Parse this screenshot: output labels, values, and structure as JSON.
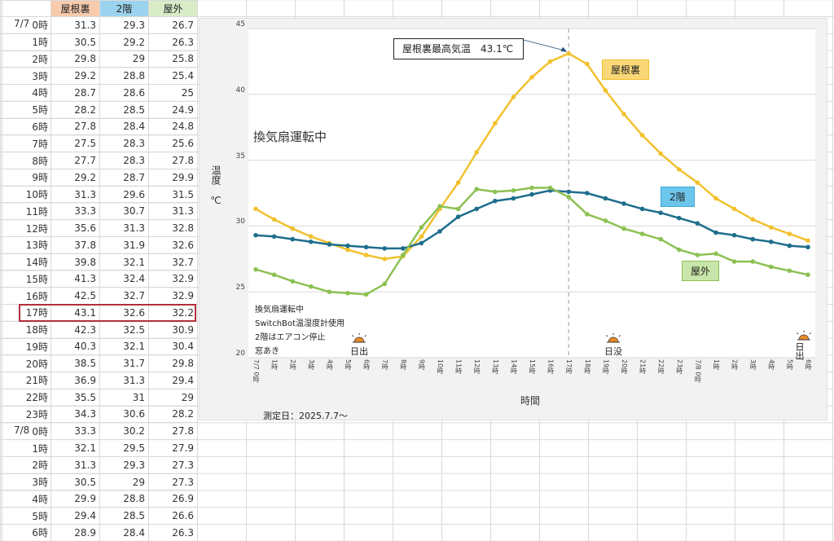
{
  "sheet": {
    "headers": [
      "",
      "屋根裏",
      "2階",
      "屋外"
    ],
    "header_colors": [
      "#ffffff",
      "#f8cbad",
      "#9bd3ee",
      "#d8ecc8"
    ],
    "highlight_row_index": 17,
    "highlight_color": "#b0303a",
    "rows": [
      {
        "date": "7/7",
        "hour": "0時",
        "attic": "31.3",
        "floor2": "29.3",
        "outside": "26.7"
      },
      {
        "date": "",
        "hour": "1時",
        "attic": "30.5",
        "floor2": "29.2",
        "outside": "26.3"
      },
      {
        "date": "",
        "hour": "2時",
        "attic": "29.8",
        "floor2": "29",
        "outside": "25.8"
      },
      {
        "date": "",
        "hour": "3時",
        "attic": "29.2",
        "floor2": "28.8",
        "outside": "25.4"
      },
      {
        "date": "",
        "hour": "4時",
        "attic": "28.7",
        "floor2": "28.6",
        "outside": "25"
      },
      {
        "date": "",
        "hour": "5時",
        "attic": "28.2",
        "floor2": "28.5",
        "outside": "24.9"
      },
      {
        "date": "",
        "hour": "6時",
        "attic": "27.8",
        "floor2": "28.4",
        "outside": "24.8"
      },
      {
        "date": "",
        "hour": "7時",
        "attic": "27.5",
        "floor2": "28.3",
        "outside": "25.6"
      },
      {
        "date": "",
        "hour": "8時",
        "attic": "27.7",
        "floor2": "28.3",
        "outside": "27.8"
      },
      {
        "date": "",
        "hour": "9時",
        "attic": "29.2",
        "floor2": "28.7",
        "outside": "29.9"
      },
      {
        "date": "",
        "hour": "10時",
        "attic": "31.3",
        "floor2": "29.6",
        "outside": "31.5"
      },
      {
        "date": "",
        "hour": "11時",
        "attic": "33.3",
        "floor2": "30.7",
        "outside": "31.3"
      },
      {
        "date": "",
        "hour": "12時",
        "attic": "35.6",
        "floor2": "31.3",
        "outside": "32.8"
      },
      {
        "date": "",
        "hour": "13時",
        "attic": "37.8",
        "floor2": "31.9",
        "outside": "32.6"
      },
      {
        "date": "",
        "hour": "14時",
        "attic": "39.8",
        "floor2": "32.1",
        "outside": "32.7"
      },
      {
        "date": "",
        "hour": "15時",
        "attic": "41.3",
        "floor2": "32.4",
        "outside": "32.9"
      },
      {
        "date": "",
        "hour": "16時",
        "attic": "42.5",
        "floor2": "32.7",
        "outside": "32.9"
      },
      {
        "date": "",
        "hour": "17時",
        "attic": "43.1",
        "floor2": "32.6",
        "outside": "32.2"
      },
      {
        "date": "",
        "hour": "18時",
        "attic": "42.3",
        "floor2": "32.5",
        "outside": "30.9"
      },
      {
        "date": "",
        "hour": "19時",
        "attic": "40.3",
        "floor2": "32.1",
        "outside": "30.4"
      },
      {
        "date": "",
        "hour": "20時",
        "attic": "38.5",
        "floor2": "31.7",
        "outside": "29.8"
      },
      {
        "date": "",
        "hour": "21時",
        "attic": "36.9",
        "floor2": "31.3",
        "outside": "29.4"
      },
      {
        "date": "",
        "hour": "22時",
        "attic": "35.5",
        "floor2": "31",
        "outside": "29"
      },
      {
        "date": "",
        "hour": "23時",
        "attic": "34.3",
        "floor2": "30.6",
        "outside": "28.2"
      },
      {
        "date": "7/8",
        "hour": "0時",
        "attic": "33.3",
        "floor2": "30.2",
        "outside": "27.8"
      },
      {
        "date": "",
        "hour": "1時",
        "attic": "32.1",
        "floor2": "29.5",
        "outside": "27.9"
      },
      {
        "date": "",
        "hour": "2時",
        "attic": "31.3",
        "floor2": "29.3",
        "outside": "27.3"
      },
      {
        "date": "",
        "hour": "3時",
        "attic": "30.5",
        "floor2": "29",
        "outside": "27.3"
      },
      {
        "date": "",
        "hour": "4時",
        "attic": "29.9",
        "floor2": "28.8",
        "outside": "26.9"
      },
      {
        "date": "",
        "hour": "5時",
        "attic": "29.4",
        "floor2": "28.5",
        "outside": "26.6"
      },
      {
        "date": "",
        "hour": "6時",
        "attic": "28.9",
        "floor2": "28.4",
        "outside": "26.3"
      }
    ]
  },
  "chart": {
    "annotation": "屋根裏最高気温　43.1℃",
    "fan_label": "換気扇運転中",
    "notes": [
      "換気扇運転中",
      "SwitchBot温湿度計使用",
      "2階はエアコン停止",
      "窓あき"
    ],
    "sunrise_label": "日出",
    "sunset_label": "日没",
    "sun_icon": "sunrise-icon",
    "xlabel": "時間",
    "ylabel": "温度　℃",
    "date_note": "測定日：2025.7.7～",
    "legend_attic": "屋根裏",
    "legend_floor2": "2階",
    "legend_outside": "屋外"
  },
  "chart_data": {
    "type": "line",
    "title": "",
    "xlabel": "時間",
    "ylabel": "温度 ℃",
    "ylim": [
      20,
      45
    ],
    "yticks": [
      20,
      25,
      30,
      35,
      40,
      45
    ],
    "grid": true,
    "categories": [
      "7/7 0時",
      "1時",
      "2時",
      "3時",
      "4時",
      "5時",
      "6時",
      "7時",
      "8時",
      "9時",
      "10時",
      "11時",
      "12時",
      "13時",
      "14時",
      "15時",
      "16時",
      "17時",
      "18時",
      "19時",
      "20時",
      "21時",
      "22時",
      "23時",
      "7/8 0時",
      "1時",
      "2時",
      "3時",
      "4時",
      "5時",
      "6時"
    ],
    "series": [
      {
        "name": "屋根裏",
        "color": "#f2c12e",
        "values": [
          31.3,
          30.5,
          29.8,
          29.2,
          28.7,
          28.2,
          27.8,
          27.5,
          27.7,
          29.2,
          31.3,
          33.3,
          35.6,
          37.8,
          39.8,
          41.3,
          42.5,
          43.1,
          42.3,
          40.3,
          38.5,
          36.9,
          35.5,
          34.3,
          33.3,
          32.1,
          31.3,
          30.5,
          29.9,
          29.4,
          28.9
        ]
      },
      {
        "name": "2階",
        "color": "#1f6e8c",
        "values": [
          29.3,
          29.2,
          29,
          28.8,
          28.6,
          28.5,
          28.4,
          28.3,
          28.3,
          28.7,
          29.6,
          30.7,
          31.3,
          31.9,
          32.1,
          32.4,
          32.7,
          32.6,
          32.5,
          32.1,
          31.7,
          31.3,
          31,
          30.6,
          30.2,
          29.5,
          29.3,
          29,
          28.8,
          28.5,
          28.4
        ]
      },
      {
        "name": "屋外",
        "color": "#8cc152",
        "values": [
          26.7,
          26.3,
          25.8,
          25.4,
          25,
          24.9,
          24.8,
          25.6,
          27.8,
          29.9,
          31.5,
          31.3,
          32.8,
          32.6,
          32.7,
          32.9,
          32.9,
          32.2,
          30.9,
          30.4,
          29.8,
          29.4,
          29,
          28.2,
          27.8,
          27.9,
          27.3,
          27.3,
          26.9,
          26.6,
          26.3
        ]
      }
    ],
    "annotations": [
      {
        "text": "屋根裏最高気温 43.1℃",
        "x": "17時",
        "y": 43.1
      },
      {
        "text": "換気扇運転中"
      },
      {
        "text": "日出",
        "x": "5時"
      },
      {
        "text": "日没",
        "x": "19時"
      },
      {
        "text": "日出",
        "x": "7/8 6時"
      },
      {
        "text": "測定日：2025.7.7～"
      }
    ],
    "vertical_marker": {
      "x": "17時",
      "style": "dashed"
    }
  }
}
